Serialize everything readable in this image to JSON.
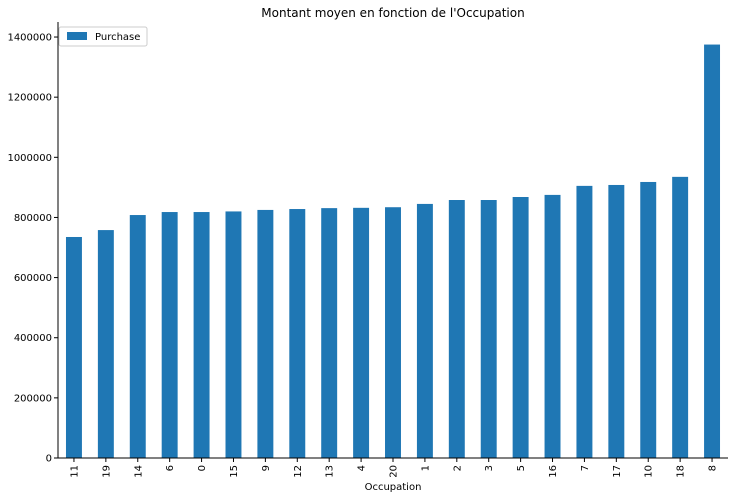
{
  "chart_data": {
    "type": "bar",
    "title": "Montant moyen en fonction de l'Occupation",
    "xlabel": "Occupation",
    "ylabel": "",
    "categories": [
      "11",
      "19",
      "14",
      "6",
      "0",
      "15",
      "9",
      "12",
      "13",
      "4",
      "20",
      "1",
      "2",
      "3",
      "5",
      "16",
      "7",
      "17",
      "10",
      "18",
      "8"
    ],
    "series": [
      {
        "name": "Purchase",
        "color": "#1f77b4",
        "values": [
          735000,
          758000,
          808000,
          818000,
          818000,
          820000,
          825000,
          828000,
          831000,
          832000,
          834000,
          845000,
          858000,
          858000,
          868000,
          875000,
          905000,
          908000,
          918000,
          935000,
          1375000
        ]
      }
    ],
    "ylim": [
      0,
      1450000
    ],
    "yticks": [
      0,
      200000,
      400000,
      600000,
      800000,
      1000000,
      1200000,
      1400000
    ],
    "grid": false,
    "legend": "top-left"
  }
}
